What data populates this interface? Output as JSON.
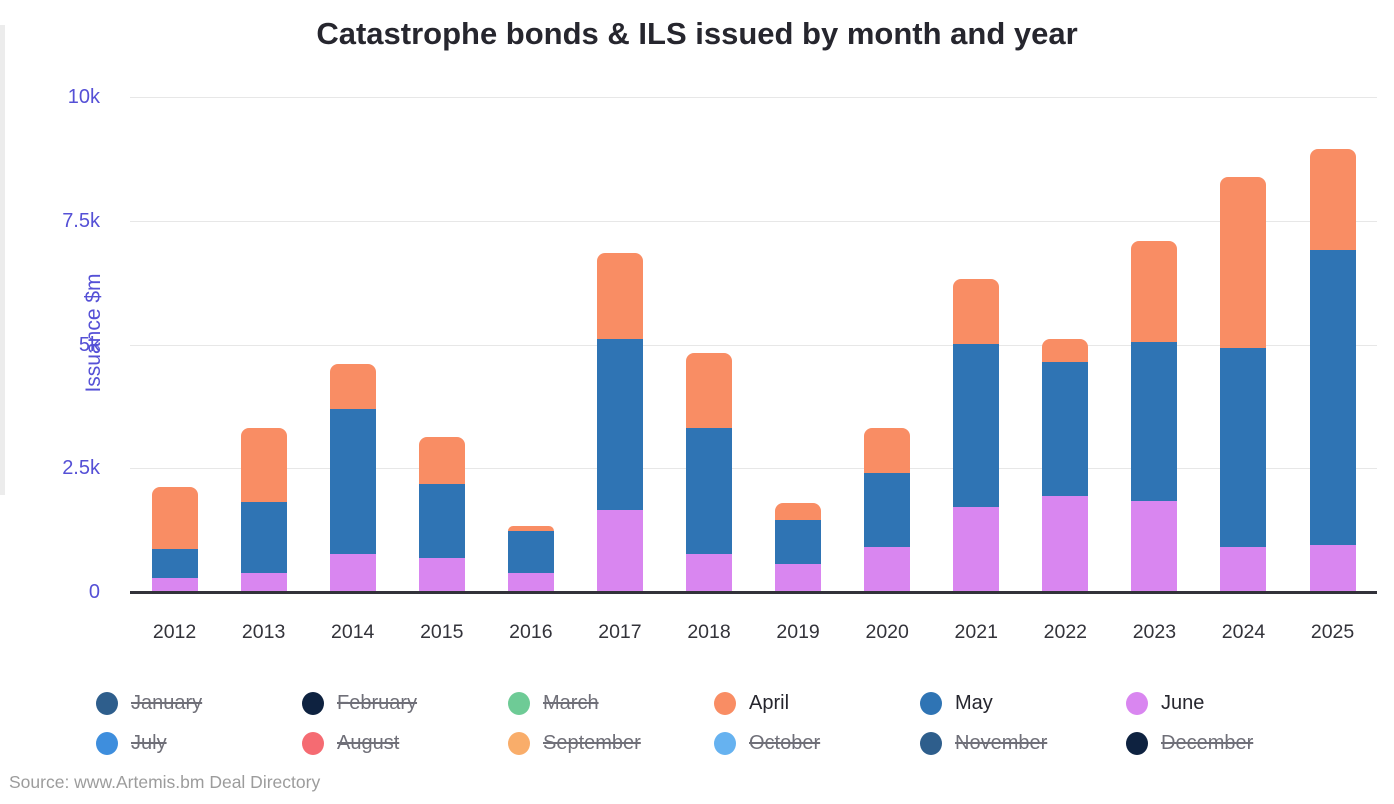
{
  "page": {
    "source": "Source: www.Artemis.bm Deal Directory"
  },
  "colors": {
    "axis_accent": "#5550d6",
    "grid": "#e7e7e7",
    "baseline": "#32323a",
    "title_text": "#26262e",
    "x_label_text": "#33333a",
    "legend_disabled_text": "#6f6f78",
    "source_text": "#9c9c9c"
  },
  "chart_data": {
    "type": "bar",
    "stacked": true,
    "stack_order": "bottom-to-top",
    "title": "Catastrophe bonds & ILS issued by month and year",
    "xlabel": "",
    "ylabel": "Issuance $m",
    "ylim": [
      0,
      10000
    ],
    "grid": true,
    "legend_position": "bottom",
    "yticks": [
      {
        "value": 0,
        "label": "0"
      },
      {
        "value": 2500,
        "label": "2.5k"
      },
      {
        "value": 5000,
        "label": "5k"
      },
      {
        "value": 7500,
        "label": "7.5k"
      },
      {
        "value": 10000,
        "label": "10k"
      }
    ],
    "categories": [
      "2012",
      "2013",
      "2014",
      "2015",
      "2016",
      "2017",
      "2018",
      "2019",
      "2020",
      "2021",
      "2022",
      "2023",
      "2024",
      "2025"
    ],
    "series": [
      {
        "name": "June",
        "color": "#d986f0",
        "values": [
          280,
          390,
          770,
          690,
          390,
          1650,
          770,
          570,
          900,
          1710,
          1940,
          1830,
          910,
          950
        ]
      },
      {
        "name": "May",
        "color": "#2f74b4",
        "values": [
          590,
          1430,
          2930,
          1490,
          840,
          3460,
          2540,
          890,
          1500,
          3310,
          2710,
          3230,
          4020,
          5960
        ]
      },
      {
        "name": "April",
        "color": "#f98d64",
        "values": [
          1250,
          1500,
          910,
          950,
          110,
          1740,
          1510,
          330,
          920,
          1300,
          470,
          2040,
          3460,
          2040
        ]
      }
    ],
    "legend": [
      {
        "label": "January",
        "color": "#2e5e8c",
        "active": false
      },
      {
        "label": "February",
        "color": "#0e2240",
        "active": false
      },
      {
        "label": "March",
        "color": "#6ecb96",
        "active": false
      },
      {
        "label": "April",
        "color": "#f98d64",
        "active": true
      },
      {
        "label": "May",
        "color": "#2f74b4",
        "active": true
      },
      {
        "label": "June",
        "color": "#d986f0",
        "active": true
      },
      {
        "label": "July",
        "color": "#3e8edd",
        "active": false
      },
      {
        "label": "August",
        "color": "#f56b72",
        "active": false
      },
      {
        "label": "September",
        "color": "#f9ad6a",
        "active": false
      },
      {
        "label": "October",
        "color": "#66b2f0",
        "active": false
      },
      {
        "label": "November",
        "color": "#2e5e8c",
        "active": false
      },
      {
        "label": "December",
        "color": "#0e2240",
        "active": false
      }
    ]
  }
}
